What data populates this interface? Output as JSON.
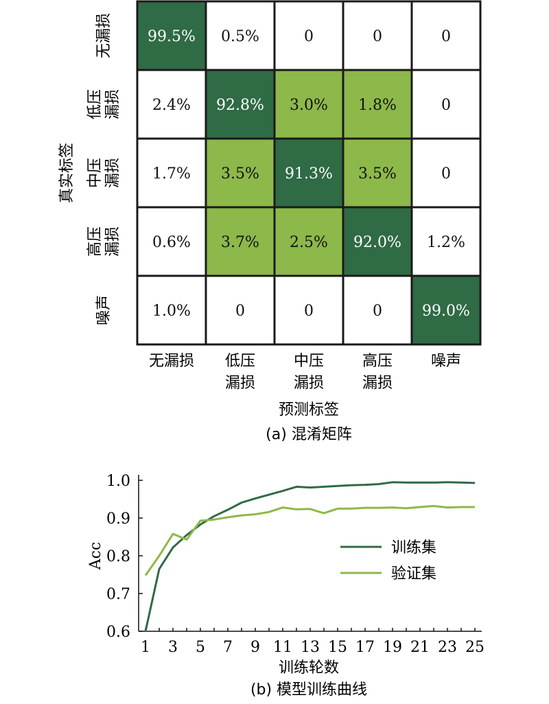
{
  "chart_data": [
    {
      "type": "heatmap",
      "caption": "(a) 混淆矩阵",
      "xlabel": "预测标签",
      "ylabel": "真实标签",
      "x_categories": [
        "无漏损",
        "低压\n漏损",
        "中压\n漏损",
        "高压\n漏损",
        "噪声"
      ],
      "y_categories": [
        "无漏损",
        "低压\n漏损",
        "中压\n漏损",
        "高压\n漏损",
        "噪声"
      ],
      "cells": [
        [
          "99.5%",
          "0.5%",
          "0",
          "0",
          "0"
        ],
        [
          "2.4%",
          "92.8%",
          "3.0%",
          "1.8%",
          "0"
        ],
        [
          "1.7%",
          "3.5%",
          "91.3%",
          "3.5%",
          "0"
        ],
        [
          "0.6%",
          "3.7%",
          "2.5%",
          "92.0%",
          "1.2%"
        ],
        [
          "1.0%",
          "0",
          "0",
          "0",
          "99.0%"
        ]
      ],
      "colors": {
        "high": "#2f6b45",
        "mid": "#8db84a",
        "low": "#ffffff",
        "border": "#1a1a1a"
      }
    },
    {
      "type": "line",
      "caption": "(b) 模型训练曲线",
      "xlabel": "训练轮数",
      "ylabel": "Acc",
      "xlim": [
        0.5,
        25.5
      ],
      "ylim": [
        0.6,
        1.0
      ],
      "x_ticks": [
        1,
        3,
        5,
        7,
        9,
        11,
        13,
        15,
        17,
        19,
        21,
        23,
        25
      ],
      "y_ticks": [
        "0.6",
        "0.7",
        "0.8",
        "0.9",
        "1.0"
      ],
      "x": [
        1,
        2,
        3,
        4,
        5,
        6,
        7,
        8,
        9,
        10,
        11,
        12,
        13,
        14,
        15,
        16,
        17,
        18,
        19,
        20,
        21,
        22,
        23,
        24,
        25
      ],
      "series": [
        {
          "name": "训练集",
          "color": "#2f6b45",
          "values": [
            0.6,
            0.765,
            0.822,
            0.855,
            0.883,
            0.905,
            0.922,
            0.941,
            0.952,
            0.962,
            0.972,
            0.983,
            0.981,
            0.983,
            0.985,
            0.987,
            0.988,
            0.99,
            0.995,
            0.994,
            0.994,
            0.994,
            0.995,
            0.994,
            0.993
          ]
        },
        {
          "name": "验证集",
          "color": "#8db84a",
          "values": [
            0.748,
            0.8,
            0.858,
            0.843,
            0.893,
            0.896,
            0.902,
            0.907,
            0.91,
            0.916,
            0.928,
            0.923,
            0.924,
            0.913,
            0.925,
            0.925,
            0.927,
            0.927,
            0.928,
            0.926,
            0.929,
            0.932,
            0.928,
            0.929,
            0.929
          ]
        }
      ],
      "legend_position": "right"
    }
  ]
}
